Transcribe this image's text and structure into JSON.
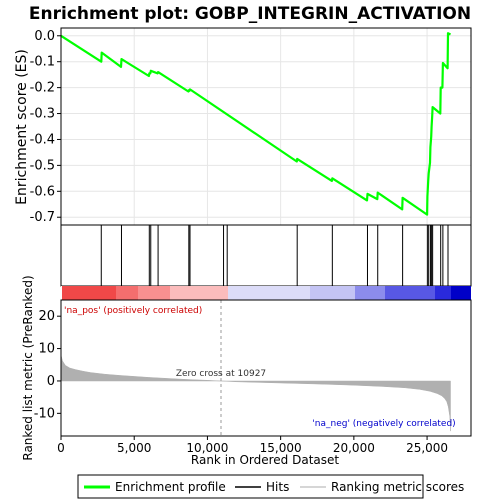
{
  "chart_data": {
    "type": "line",
    "title": "Enrichment plot: GOBP_INTEGRIN_ACTIVATION",
    "top_panel": {
      "ylabel": "Enrichment score (ES)",
      "ylim": [
        -0.73,
        0.03
      ],
      "yticks": [
        0.0,
        -0.1,
        -0.2,
        -0.3,
        -0.4,
        -0.5,
        -0.6,
        -0.7
      ],
      "ytick_labels": [
        "0.0",
        "-0.1",
        "-0.2",
        "-0.3",
        "-0.4",
        "-0.5",
        "-0.6",
        "-0.7"
      ],
      "grid": true,
      "series": [
        {
          "name": "Enrichment profile",
          "color": "#00ff00",
          "x": [
            0,
            2750,
            2780,
            4100,
            4130,
            6000,
            6030,
            6100,
            6130,
            6600,
            6630,
            8700,
            8730,
            8780,
            8810,
            16100,
            16130,
            18500,
            18530,
            20900,
            20930,
            21600,
            21630,
            23300,
            23330,
            25000,
            25020,
            25080,
            25110,
            25200,
            25230,
            25280,
            25310,
            25350,
            25380,
            25900,
            25930,
            26050,
            26080,
            26400,
            26430,
            26600
          ],
          "y": [
            0.0,
            -0.1,
            -0.065,
            -0.12,
            -0.09,
            -0.155,
            -0.145,
            -0.145,
            -0.135,
            -0.145,
            -0.14,
            -0.215,
            -0.21,
            -0.212,
            -0.207,
            -0.485,
            -0.475,
            -0.56,
            -0.55,
            -0.635,
            -0.61,
            -0.63,
            -0.605,
            -0.67,
            -0.625,
            -0.69,
            -0.62,
            -0.56,
            -0.53,
            -0.49,
            -0.43,
            -0.39,
            -0.35,
            -0.31,
            -0.275,
            -0.3,
            -0.2,
            -0.2,
            -0.105,
            -0.125,
            0.01,
            0.005
          ]
        }
      ]
    },
    "hits": {
      "color": "#000000",
      "positions": [
        2750,
        4130,
        6030,
        6130,
        6630,
        8730,
        8810,
        11100,
        11350,
        16130,
        18530,
        20930,
        21630,
        23330,
        25020,
        25110,
        25230,
        25310,
        25380,
        25930,
        26080,
        26430
      ]
    },
    "ranking_bar": {
      "colors": [
        "#ff0000",
        "#ffffff",
        "#0000ff"
      ]
    },
    "bottom_panel": {
      "ylabel": "Ranked list metric (PreRanked)",
      "xlabel": "Rank in Dataset",
      "xlabel_display": "Rank in Ordered Dataset",
      "xlim": [
        0,
        28000
      ],
      "xticks": [
        0,
        5000,
        10000,
        15000,
        20000,
        25000
      ],
      "xtick_labels": [
        "0",
        "5,000",
        "10,000",
        "15,000",
        "20,000",
        "25,000"
      ],
      "ylim": [
        -17,
        25
      ],
      "yticks": [
        20,
        10,
        0,
        -10
      ],
      "ytick_labels": [
        "20",
        "10",
        "0",
        "-10"
      ],
      "zero_cross": 10927,
      "zero_cross_label": "Zero cross at 10927",
      "pos_label": "'na_pos' (positively correlated)",
      "neg_label": "'na_neg' (negatively correlated)",
      "metric_color": "#b0b0b0",
      "metric_x": [
        0,
        100,
        300,
        600,
        1000,
        1500,
        2000,
        3000,
        4000,
        5000,
        6000,
        7000,
        8000,
        9000,
        10000,
        10927,
        12000,
        14000,
        16000,
        18000,
        20000,
        22000,
        23500,
        24500,
        25200,
        25700,
        26000,
        26200,
        26350,
        26450,
        26550,
        26600
      ],
      "metric_y": [
        8,
        6.2,
        4.8,
        4.0,
        3.5,
        3.0,
        2.6,
        2.1,
        1.7,
        1.4,
        1.1,
        0.85,
        0.6,
        0.4,
        0.2,
        0.0,
        -0.25,
        -0.5,
        -0.75,
        -1.0,
        -1.3,
        -1.7,
        -2.1,
        -2.6,
        -3.2,
        -3.9,
        -4.6,
        -5.4,
        -6.4,
        -8.0,
        -11.0,
        -15.5
      ]
    },
    "legend": [
      {
        "label": "Enrichment profile",
        "color": "#00ff00"
      },
      {
        "label": "Hits",
        "color": "#000000"
      },
      {
        "label": "Ranking metric scores",
        "color": "#b0b0b0"
      }
    ]
  }
}
